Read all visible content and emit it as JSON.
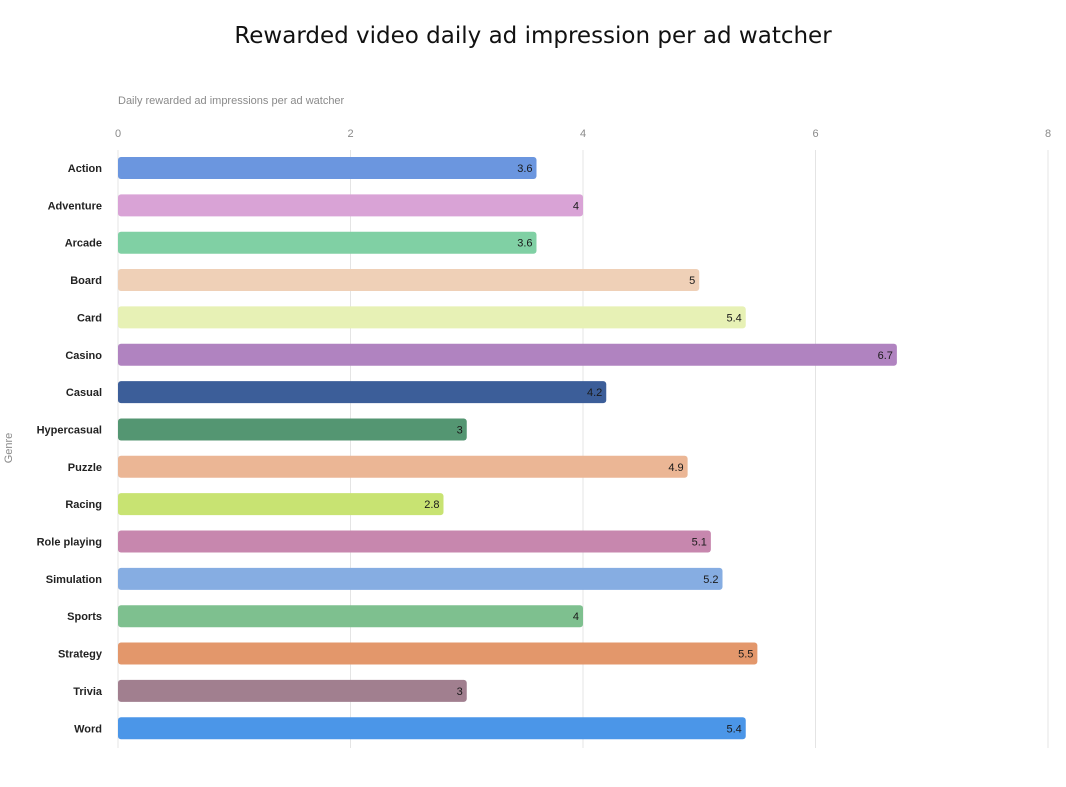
{
  "chart_data": {
    "type": "bar",
    "orientation": "horizontal",
    "title": "Rewarded video daily ad impression per ad watcher",
    "xlabel": "Daily rewarded ad impressions per ad watcher",
    "ylabel": "Genre",
    "xlim": [
      0,
      8
    ],
    "xticks": [
      "0",
      "2",
      "4",
      "6",
      "8"
    ],
    "grid": true,
    "categories": [
      "Action",
      "Adventure",
      "Arcade",
      "Board",
      "Card",
      "Casino",
      "Casual",
      "Hypercasual",
      "Puzzle",
      "Racing",
      "Role playing",
      "Simulation",
      "Sports",
      "Strategy",
      "Trivia",
      "Word"
    ],
    "values": [
      3.6,
      4,
      3.6,
      5,
      5.4,
      6.7,
      4.2,
      3,
      4.9,
      2.8,
      5.1,
      5.2,
      4,
      5.5,
      3,
      5.4
    ],
    "value_labels": [
      "3.6",
      "4",
      "3.6",
      "5",
      "5.4",
      "6.7",
      "4.2",
      "3",
      "4.9",
      "2.8",
      "5.1",
      "5.2",
      "4",
      "5.5",
      "3",
      "5.4"
    ],
    "colors": [
      "#6b96df",
      "#d9a3d6",
      "#80d0a4",
      "#efd0b7",
      "#e7f1b5",
      "#b083c0",
      "#3c5e99",
      "#549672",
      "#ebb695",
      "#c8e372",
      "#c787ae",
      "#86ade2",
      "#7ec08f",
      "#e3976b",
      "#a17f8f",
      "#4b96e8"
    ]
  }
}
